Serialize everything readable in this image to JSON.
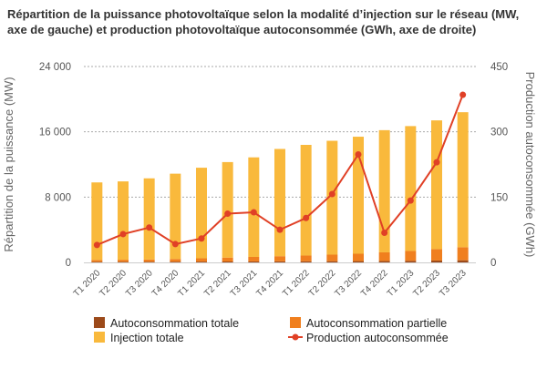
{
  "chart_data": {
    "type": "bar",
    "title": [
      "Répartition de la puissance photovoltaïque selon la modalité d’injection sur le réseau (MW,",
      "axe de gauche) et production photovoltaïque autoconsommée (GWh, axe de droite)"
    ],
    "ylabel": "Répartition de la puissance (MW)",
    "y2label": "Production autoconsommée (GWh)",
    "ylim": [
      0,
      24000
    ],
    "y2lim": [
      0,
      450
    ],
    "yticks": [
      "0",
      "8 000",
      "16 000",
      "24 000"
    ],
    "y2ticks": [
      "0",
      "150",
      "300",
      "450"
    ],
    "stacked": true,
    "categories": [
      "T1 2020",
      "T2 2020",
      "T3 2020",
      "T4 2020",
      "T1 2021",
      "T2 2021",
      "T3 2021",
      "T4 2021",
      "T1 2022",
      "T2 2022",
      "T3 2022",
      "T4 2022",
      "T1 2023",
      "T2 2023",
      "T3 2023"
    ],
    "series": [
      {
        "name": "Autoconsommation totale",
        "type": "bar",
        "axis": "left",
        "color": "#9c4a1a",
        "values": [
          70,
          75,
          80,
          90,
          100,
          110,
          120,
          130,
          140,
          150,
          160,
          180,
          200,
          230,
          260
        ]
      },
      {
        "name": "Autoconsommation partielle",
        "type": "bar",
        "axis": "left",
        "color": "#f07f1e",
        "values": [
          230,
          250,
          270,
          330,
          400,
          480,
          550,
          630,
          700,
          800,
          900,
          1050,
          1200,
          1400,
          1600
        ]
      },
      {
        "name": "Injection totale",
        "type": "bar",
        "axis": "left",
        "color": "#f9b93c",
        "values": [
          9500,
          9600,
          9950,
          10450,
          11100,
          11700,
          12200,
          13140,
          13560,
          13950,
          14340,
          14970,
          15300,
          15770,
          16540
        ]
      },
      {
        "name": "Production autoconsommée",
        "type": "line",
        "axis": "right",
        "color": "#e04026",
        "values": [
          40,
          65,
          80,
          42,
          55,
          112,
          115,
          75,
          102,
          157,
          248,
          68,
          142,
          230,
          385
        ]
      }
    ],
    "legend": "bottom",
    "grid": true
  }
}
